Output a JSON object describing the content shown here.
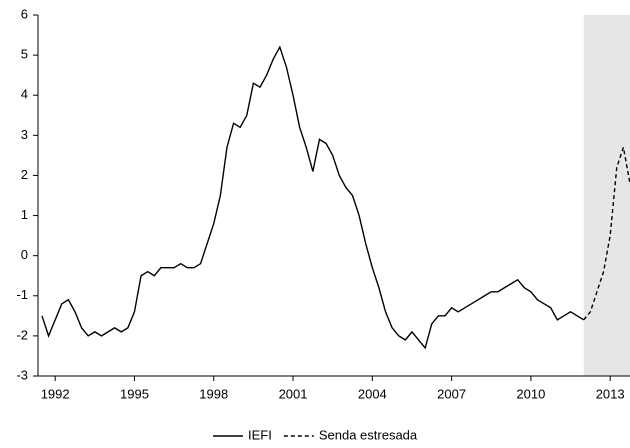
{
  "chart_data": {
    "type": "line",
    "x": [
      1991.5,
      1991.75,
      1992,
      1992.25,
      1992.5,
      1992.75,
      1993,
      1993.25,
      1993.5,
      1993.75,
      1994,
      1994.25,
      1994.5,
      1994.75,
      1995,
      1995.25,
      1995.5,
      1995.75,
      1996,
      1996.25,
      1996.5,
      1996.75,
      1997,
      1997.25,
      1997.5,
      1997.75,
      1998,
      1998.25,
      1998.5,
      1998.75,
      1999,
      1999.25,
      1999.5,
      1999.75,
      2000,
      2000.25,
      2000.5,
      2000.75,
      2001,
      2001.25,
      2001.5,
      2001.75,
      2002,
      2002.25,
      2002.5,
      2002.75,
      2003,
      2003.25,
      2003.5,
      2003.75,
      2004,
      2004.25,
      2004.5,
      2004.75,
      2005,
      2005.25,
      2005.5,
      2005.75,
      2006,
      2006.25,
      2006.5,
      2006.75,
      2007,
      2007.25,
      2007.5,
      2007.75,
      2008,
      2008.25,
      2008.5,
      2008.75,
      2009,
      2009.25,
      2009.5,
      2009.75,
      2010,
      2010.25,
      2010.5,
      2010.75,
      2011,
      2011.25,
      2011.5,
      2011.75,
      2012,
      2012.25,
      2012.5,
      2012.75,
      2013,
      2013.25,
      2013.5,
      2013.75
    ],
    "series": [
      {
        "name": "IEFI",
        "color": "#000000",
        "dash": "solid",
        "values": [
          -1.5,
          -2.0,
          -1.6,
          -1.2,
          -1.1,
          -1.4,
          -1.8,
          -2.0,
          -1.9,
          -2.0,
          -1.9,
          -1.8,
          -1.9,
          -1.8,
          -1.4,
          -0.5,
          -0.4,
          -0.5,
          -0.3,
          -0.3,
          -0.3,
          -0.2,
          -0.3,
          -0.3,
          -0.2,
          0.3,
          0.8,
          1.5,
          2.7,
          3.3,
          3.2,
          3.5,
          4.3,
          4.2,
          4.5,
          4.9,
          5.2,
          4.7,
          4.0,
          3.2,
          2.7,
          2.1,
          2.9,
          2.8,
          2.5,
          2.0,
          1.7,
          1.5,
          1.0,
          0.3,
          -0.3,
          -0.8,
          -1.4,
          -1.8,
          -2.0,
          -2.1,
          -1.9,
          -2.1,
          -2.3,
          -1.7,
          -1.5,
          -1.5,
          -1.3,
          -1.4,
          -1.3,
          -1.2,
          -1.1,
          -1.0,
          -0.9,
          -0.9,
          -0.8,
          -0.7,
          -0.6,
          -0.8,
          -0.9,
          -1.1,
          -1.2,
          -1.3,
          -1.6,
          -1.5,
          -1.4,
          -1.5,
          -1.6,
          null,
          null,
          null,
          null,
          null,
          null,
          null
        ]
      },
      {
        "name": "Senda estresada",
        "color": "#000000",
        "dash": "dashed",
        "values": [
          null,
          null,
          null,
          null,
          null,
          null,
          null,
          null,
          null,
          null,
          null,
          null,
          null,
          null,
          null,
          null,
          null,
          null,
          null,
          null,
          null,
          null,
          null,
          null,
          null,
          null,
          null,
          null,
          null,
          null,
          null,
          null,
          null,
          null,
          null,
          null,
          null,
          null,
          null,
          null,
          null,
          null,
          null,
          null,
          null,
          null,
          null,
          null,
          null,
          null,
          null,
          null,
          null,
          null,
          null,
          null,
          null,
          null,
          null,
          null,
          null,
          null,
          null,
          null,
          null,
          null,
          null,
          null,
          null,
          null,
          null,
          null,
          null,
          null,
          null,
          null,
          null,
          null,
          null,
          null,
          null,
          null,
          -1.6,
          -1.4,
          -0.9,
          -0.4,
          0.5,
          2.2,
          2.7,
          1.8
        ]
      }
    ],
    "xlim": [
      1991.35,
      2013.75
    ],
    "xticks": [
      1992,
      1995,
      1998,
      2001,
      2004,
      2007,
      2010,
      2013
    ],
    "ylim": [
      -3,
      6
    ],
    "yticks": [
      -3,
      -2,
      -1,
      0,
      1,
      2,
      3,
      4,
      5,
      6
    ],
    "shaded_region": [
      2012,
      2013.75
    ],
    "shade_color": "#e6e6e6",
    "grid": false,
    "legend": "bottom"
  }
}
